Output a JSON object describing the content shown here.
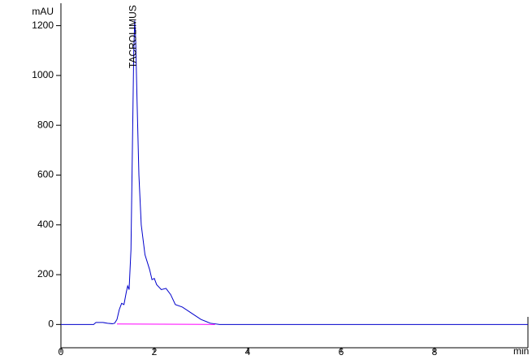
{
  "chart_data": {
    "type": "line",
    "y_unit": "mAU",
    "x_unit": "min",
    "annotations": [
      {
        "text": "TACROLIMUS",
        "x": 1.55
      }
    ],
    "xlim": [
      0,
      10
    ],
    "xticks": [
      0,
      2,
      4,
      6,
      8
    ],
    "ylim": [
      -100,
      1290
    ],
    "yticks": [
      0,
      200,
      400,
      600,
      800,
      1000,
      1200
    ],
    "series": [
      {
        "color": "#0000cc",
        "x": [
          0,
          0.7,
          0.75,
          0.9,
          1.0,
          1.1,
          1.15,
          1.2,
          1.25,
          1.3,
          1.35,
          1.4,
          1.43,
          1.46,
          1.5,
          1.53,
          1.56,
          1.58,
          1.6,
          1.63,
          1.67,
          1.72,
          1.8,
          1.9,
          1.95,
          2.0,
          2.05,
          2.15,
          2.25,
          2.35,
          2.45,
          2.6,
          2.8,
          3.0,
          3.2,
          3.4,
          10
        ],
        "values": [
          0,
          0,
          8,
          8,
          5,
          3,
          5,
          20,
          60,
          85,
          80,
          130,
          155,
          140,
          300,
          700,
          1100,
          1220,
          1150,
          900,
          600,
          400,
          280,
          220,
          180,
          185,
          160,
          140,
          145,
          120,
          80,
          70,
          45,
          20,
          5,
          0,
          0
        ]
      },
      {
        "color": "#ff00ff",
        "x": [
          1.2,
          3.3
        ],
        "values": [
          2,
          0
        ]
      }
    ]
  }
}
